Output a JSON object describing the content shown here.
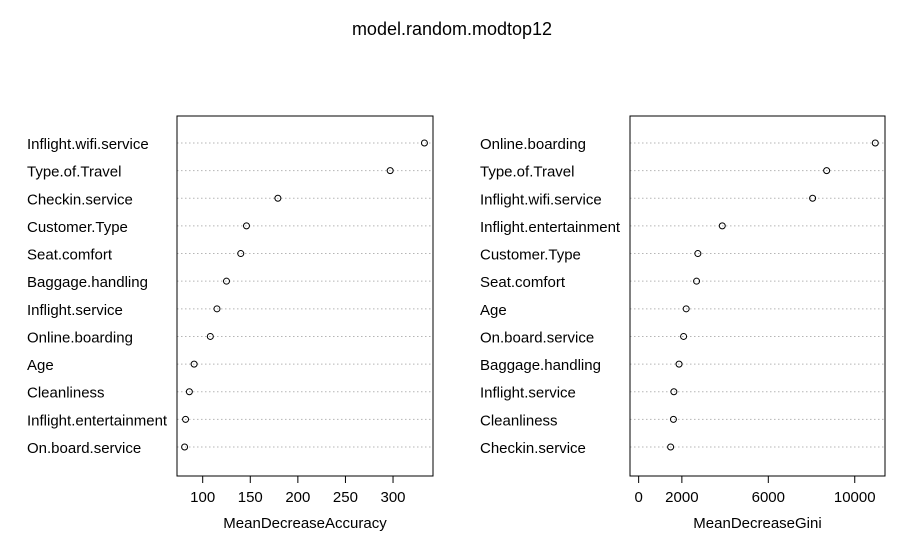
{
  "figure": {
    "title": "model.random.modtop12"
  },
  "chart_data": [
    {
      "type": "scatter",
      "subtype": "dotchart",
      "title": "",
      "xlabel": "MeanDecreaseAccuracy",
      "ylabel": "",
      "xlim": [
        73,
        342
      ],
      "xticks": [
        100,
        150,
        200,
        250,
        300
      ],
      "grid": "dotted horizontal",
      "categories": [
        "Inflight.wifi.service",
        "Type.of.Travel",
        "Checkin.service",
        "Customer.Type",
        "Seat.comfort",
        "Baggage.handling",
        "Inflight.service",
        "Online.boarding",
        "Age",
        "Cleanliness",
        "Inflight.entertainment",
        "On.board.service"
      ],
      "values": [
        333,
        297,
        179,
        146,
        140,
        125,
        115,
        108,
        91,
        86,
        82,
        81
      ]
    },
    {
      "type": "scatter",
      "subtype": "dotchart",
      "title": "",
      "xlabel": "MeanDecreaseGini",
      "ylabel": "",
      "xlim": [
        -400,
        11400
      ],
      "xticks": [
        0,
        2000,
        6000,
        10000
      ],
      "grid": "dotted horizontal",
      "categories": [
        "Online.boarding",
        "Type.of.Travel",
        "Inflight.wifi.service",
        "Inflight.entertainment",
        "Customer.Type",
        "Seat.comfort",
        "Age",
        "On.board.service",
        "Baggage.handling",
        "Inflight.service",
        "Cleanliness",
        "Checkin.service"
      ],
      "values": [
        10950,
        8700,
        8050,
        3870,
        2740,
        2680,
        2200,
        2080,
        1870,
        1630,
        1610,
        1480
      ]
    }
  ]
}
